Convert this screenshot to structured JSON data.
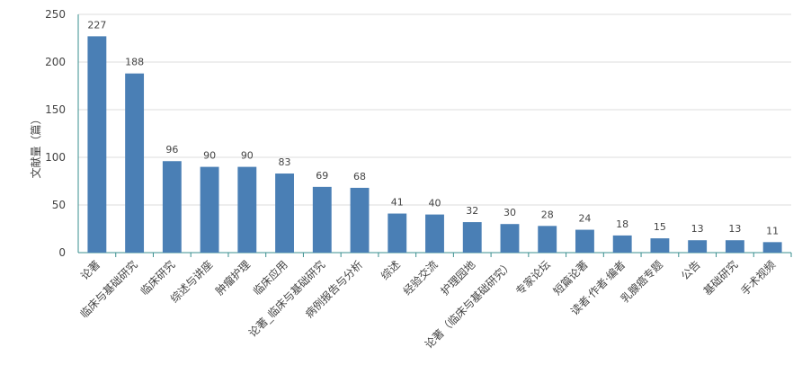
{
  "chart_data": {
    "type": "bar",
    "title": "",
    "xlabel": "",
    "ylabel": "文献量（篇）",
    "ylim": [
      0,
      250
    ],
    "yticks": [
      0,
      50,
      100,
      150,
      200,
      250
    ],
    "grid": true,
    "legend": "none",
    "bar_color": "#4a7fb5",
    "categories": [
      "论著",
      "临床与基础研究",
      "临床研究",
      "综述与讲座",
      "肿瘤护理",
      "临床应用",
      "论著_临床与基础研究",
      "病例报告与分析",
      "综述",
      "经验交流",
      "护理园地",
      "论著（临床与基础研究）",
      "专家论坛",
      "短篇论著",
      "读者·作者·编者",
      "乳腺癌专题",
      "公告",
      "基础研究",
      "手术视频"
    ],
    "values": [
      227,
      188,
      96,
      90,
      90,
      83,
      69,
      68,
      41,
      40,
      32,
      30,
      28,
      24,
      18,
      15,
      13,
      13,
      11
    ]
  }
}
